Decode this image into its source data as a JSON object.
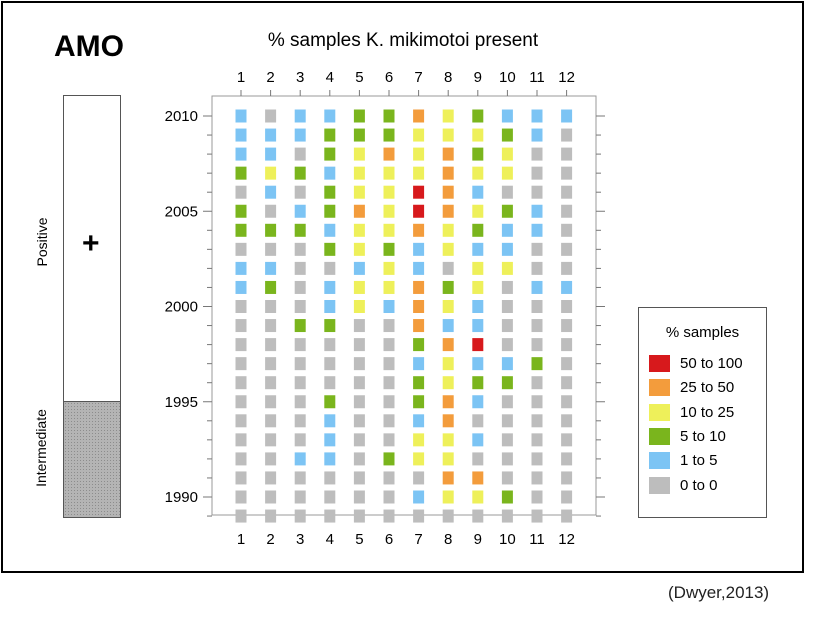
{
  "page_label": "AMO",
  "citation": "(Dwyer,2013)",
  "phase_bar": {
    "positive_label": "Positive",
    "positive_symbol": "+",
    "intermediate_label": "Intermediate",
    "positive_years": [
      1995,
      2011
    ],
    "intermediate_years": [
      1989,
      1995
    ]
  },
  "legend": {
    "title": "% samples",
    "items": [
      {
        "label": "50 to 100",
        "color": "#d7191c"
      },
      {
        "label": "25 to 50",
        "color": "#f39c3c"
      },
      {
        "label": "10 to 25",
        "color": "#eef05a"
      },
      {
        "label": "5 to 10",
        "color": "#7ab51d"
      },
      {
        "label": "1 to 5",
        "color": "#7cc4f4"
      },
      {
        "label": "0 to 0",
        "color": "#bdbdbd"
      }
    ]
  },
  "chart_data": {
    "type": "heatmap",
    "title": "% samples K. mikimotoi present",
    "x": [
      1,
      2,
      3,
      4,
      5,
      6,
      7,
      8,
      9,
      10,
      11,
      12
    ],
    "x_tick_labels": [
      "1",
      "2",
      "3",
      "4",
      "5",
      "6",
      "7",
      "8",
      "9",
      "10",
      "11",
      "12"
    ],
    "y_tick_labels": [
      "2010",
      "2005",
      "2000",
      "1995",
      "1990"
    ],
    "y_ticks": [
      2010,
      2005,
      2000,
      1995,
      1990
    ],
    "ylim": [
      1989,
      2011
    ],
    "categories": [
      "0 to 0",
      "1 to 5",
      "5 to 10",
      "10 to 25",
      "25 to 50",
      "50 to 100"
    ],
    "colors": [
      "#bdbdbd",
      "#7cc4f4",
      "#7ab51d",
      "#eef05a",
      "#f39c3c",
      "#d7191c"
    ],
    "years": [
      2010,
      2009,
      2008,
      2007,
      2006,
      2005,
      2004,
      2003,
      2002,
      2001,
      2000,
      1999,
      1998,
      1997,
      1996,
      1995,
      1994,
      1993,
      1992,
      1991,
      1990,
      1989
    ],
    "values": [
      [
        1,
        0,
        1,
        1,
        2,
        2,
        4,
        3,
        2,
        1,
        1,
        1
      ],
      [
        1,
        1,
        1,
        2,
        2,
        2,
        3,
        3,
        3,
        2,
        1,
        0
      ],
      [
        1,
        1,
        0,
        2,
        3,
        4,
        3,
        4,
        2,
        3,
        0,
        0
      ],
      [
        2,
        3,
        2,
        1,
        3,
        3,
        3,
        4,
        3,
        3,
        0,
        0
      ],
      [
        0,
        1,
        0,
        2,
        3,
        3,
        5,
        4,
        1,
        0,
        0,
        0
      ],
      [
        2,
        0,
        1,
        2,
        4,
        3,
        5,
        4,
        3,
        2,
        1,
        0
      ],
      [
        2,
        2,
        2,
        1,
        3,
        3,
        4,
        3,
        2,
        1,
        1,
        0
      ],
      [
        0,
        0,
        0,
        2,
        3,
        2,
        1,
        3,
        1,
        1,
        0,
        0
      ],
      [
        1,
        1,
        0,
        0,
        1,
        3,
        1,
        0,
        3,
        3,
        0,
        0
      ],
      [
        1,
        2,
        0,
        1,
        3,
        3,
        4,
        2,
        3,
        0,
        1,
        1
      ],
      [
        0,
        0,
        0,
        1,
        3,
        1,
        4,
        3,
        1,
        0,
        0,
        0
      ],
      [
        0,
        0,
        2,
        2,
        0,
        0,
        4,
        1,
        1,
        0,
        0,
        0
      ],
      [
        0,
        0,
        0,
        0,
        0,
        0,
        2,
        4,
        5,
        0,
        0,
        0
      ],
      [
        0,
        0,
        0,
        0,
        0,
        0,
        1,
        3,
        1,
        1,
        2,
        0
      ],
      [
        0,
        0,
        0,
        0,
        0,
        0,
        2,
        3,
        2,
        2,
        0,
        0
      ],
      [
        0,
        0,
        0,
        2,
        0,
        0,
        2,
        4,
        1,
        0,
        0,
        0
      ],
      [
        0,
        0,
        0,
        1,
        0,
        0,
        1,
        4,
        0,
        0,
        0,
        0
      ],
      [
        0,
        0,
        0,
        1,
        0,
        0,
        3,
        3,
        1,
        0,
        0,
        0
      ],
      [
        0,
        0,
        1,
        1,
        0,
        2,
        3,
        3,
        0,
        0,
        0,
        0
      ],
      [
        0,
        0,
        0,
        0,
        0,
        0,
        0,
        4,
        4,
        0,
        0,
        0
      ],
      [
        0,
        0,
        0,
        0,
        0,
        0,
        1,
        3,
        3,
        2,
        0,
        0
      ],
      [
        0,
        0,
        0,
        0,
        0,
        0,
        0,
        0,
        0,
        0,
        0,
        0
      ]
    ],
    "grid": false,
    "legend_position": "right"
  }
}
